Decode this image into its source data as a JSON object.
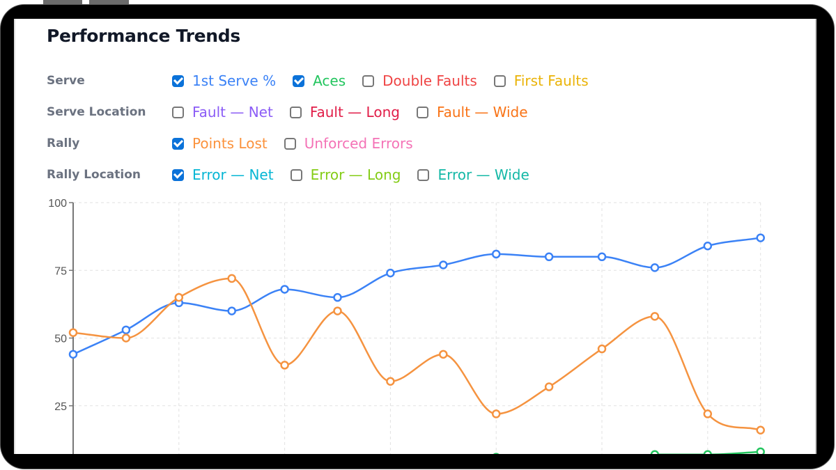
{
  "title": "Performance Trends",
  "groups": [
    {
      "label": "Serve",
      "options": [
        {
          "label": "1st Serve %",
          "checked": true,
          "color": "#3b82f6"
        },
        {
          "label": "Aces",
          "checked": true,
          "color": "#22c55e"
        },
        {
          "label": "Double Faults",
          "checked": false,
          "color": "#ef4444"
        },
        {
          "label": "First Faults",
          "checked": false,
          "color": "#eab308"
        }
      ]
    },
    {
      "label": "Serve Location",
      "options": [
        {
          "label": "Fault — Net",
          "checked": false,
          "color": "#8b5cf6"
        },
        {
          "label": "Fault — Long",
          "checked": false,
          "color": "#e11d48"
        },
        {
          "label": "Fault — Wide",
          "checked": false,
          "color": "#f97316"
        }
      ]
    },
    {
      "label": "Rally",
      "options": [
        {
          "label": "Points Lost",
          "checked": true,
          "color": "#fb923c"
        },
        {
          "label": "Unforced Errors",
          "checked": false,
          "color": "#f472b6"
        }
      ]
    },
    {
      "label": "Rally Location",
      "options": [
        {
          "label": "Error — Net",
          "checked": true,
          "color": "#06b6d4"
        },
        {
          "label": "Error — Long",
          "checked": false,
          "color": "#84cc16"
        },
        {
          "label": "Error — Wide",
          "checked": false,
          "color": "#14b8a6"
        }
      ]
    }
  ],
  "chart_data": {
    "type": "line",
    "ylim": [
      0,
      100
    ],
    "yticks": [
      "100",
      "75",
      "50",
      "25"
    ],
    "grid": true,
    "series": [
      {
        "name": "1st Serve %",
        "color": "#3b82f6",
        "values": [
          44,
          53,
          63,
          60,
          68,
          65,
          74,
          77,
          81,
          80,
          80,
          76,
          84,
          87
        ]
      },
      {
        "name": "Points Lost",
        "color": "#f59340",
        "values": [
          52,
          50,
          65,
          72,
          40,
          60,
          34,
          44,
          22,
          32,
          46,
          58,
          22,
          16
        ]
      },
      {
        "name": "Aces",
        "color": "#22c55e",
        "values": [
          null,
          null,
          null,
          null,
          null,
          null,
          null,
          null,
          6,
          null,
          null,
          7,
          7,
          8
        ]
      }
    ]
  }
}
